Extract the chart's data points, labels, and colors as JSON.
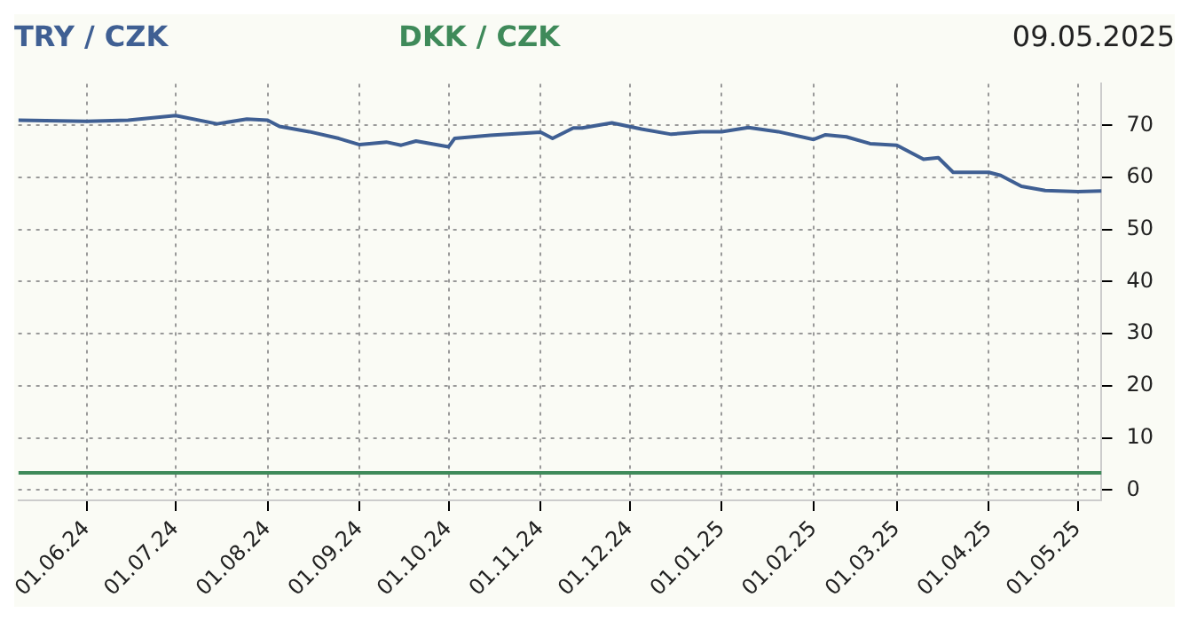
{
  "chart_data": {
    "type": "line",
    "subtitle": "09.05.2025",
    "xlim": [
      "2024-05-09",
      "2025-05-09"
    ],
    "xticks": [
      {
        "value": "2024-06-01",
        "label": "01.06.24"
      },
      {
        "value": "2024-07-01",
        "label": "01.07.24"
      },
      {
        "value": "2024-08-01",
        "label": "01.08.24"
      },
      {
        "value": "2024-09-01",
        "label": "01.09.24"
      },
      {
        "value": "2024-10-01",
        "label": "01.10.24"
      },
      {
        "value": "2024-11-01",
        "label": "01.11.24"
      },
      {
        "value": "2024-12-01",
        "label": "01.12.24"
      },
      {
        "value": "2025-01-01",
        "label": "01.01.25"
      },
      {
        "value": "2025-02-01",
        "label": "01.02.25"
      },
      {
        "value": "2025-03-01",
        "label": "01.03.25"
      },
      {
        "value": "2025-04-01",
        "label": "01.04.25"
      },
      {
        "value": "2025-05-01",
        "label": "01.05.25"
      }
    ],
    "ylim": [
      -2,
      78
    ],
    "yticks": [
      0,
      10,
      20,
      30,
      40,
      50,
      60,
      70
    ],
    "grid": true,
    "legend": "top left",
    "marker": "none",
    "line_style": "solid",
    "series": [
      {
        "name": "TRY / CZK",
        "color": "#3f5f93",
        "x": [
          "2024-05-09",
          "2024-06-01",
          "2024-06-15",
          "2024-07-01",
          "2024-07-15",
          "2024-07-25",
          "2024-08-01",
          "2024-08-05",
          "2024-08-15",
          "2024-08-25",
          "2024-09-01",
          "2024-09-10",
          "2024-09-15",
          "2024-09-20",
          "2024-10-01",
          "2024-10-03",
          "2024-10-15",
          "2024-11-01",
          "2024-11-05",
          "2024-11-12",
          "2024-11-15",
          "2024-11-25",
          "2024-12-05",
          "2024-12-15",
          "2024-12-25",
          "2025-01-01",
          "2025-01-10",
          "2025-01-20",
          "2025-02-01",
          "2025-02-05",
          "2025-02-12",
          "2025-02-20",
          "2025-03-01",
          "2025-03-10",
          "2025-03-15",
          "2025-03-20",
          "2025-04-01",
          "2025-04-05",
          "2025-04-12",
          "2025-04-20",
          "2025-05-01",
          "2025-05-09"
        ],
        "values": [
          71,
          70.8,
          71,
          71.9,
          70.3,
          71.2,
          71,
          69.8,
          68.8,
          67.5,
          66.3,
          66.8,
          66.2,
          67,
          65.9,
          67.5,
          68.1,
          68.7,
          67.5,
          69.5,
          69.5,
          70.5,
          69.3,
          68.3,
          68.8,
          68.8,
          69.6,
          68.8,
          67.3,
          68.2,
          67.8,
          66.5,
          66.2,
          63.5,
          63.8,
          61,
          61,
          60.4,
          58.3,
          57.5,
          57.3,
          57.4
        ]
      },
      {
        "name": "DKK / CZK",
        "color": "#3f8a5a",
        "x": [
          "2024-05-09",
          "2024-09-01",
          "2025-01-01",
          "2025-05-09"
        ],
        "values": [
          3.3,
          3.3,
          3.3,
          3.3
        ]
      }
    ]
  }
}
